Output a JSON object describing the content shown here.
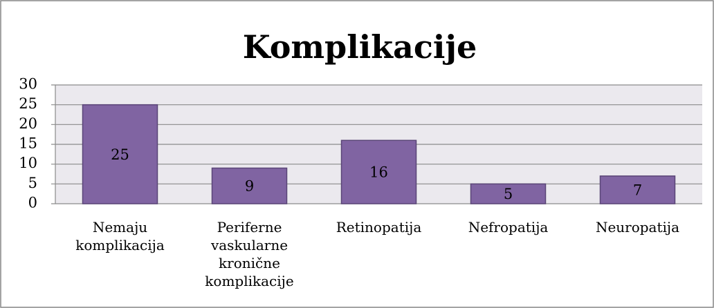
{
  "chart_data": {
    "type": "bar",
    "title": "Komplikacije",
    "categories": [
      "Nemaju komplikacija",
      "Periferne vaskularne kronične komplikacije",
      "Retinopatija",
      "Nefropatija",
      "Neuropatija"
    ],
    "values": [
      25,
      9,
      16,
      5,
      7
    ],
    "color": "#8064a2",
    "ylim": [
      0,
      30
    ],
    "yticks": [
      0,
      5,
      10,
      15,
      20,
      25,
      30
    ],
    "grid": true
  }
}
